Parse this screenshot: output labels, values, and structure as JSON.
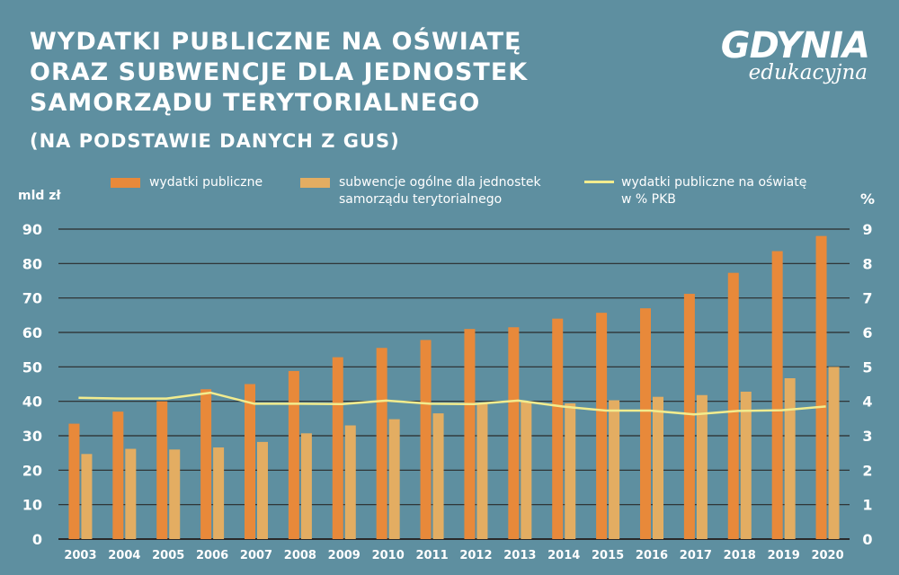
{
  "header": {
    "title_lines": [
      "WYDATKI PUBLICZNE NA OŚWIATĘ",
      "ORAZ SUBWENCJE DLA JEDNOSTEK",
      "SAMORZĄDU TERYTORIALNEGO"
    ],
    "subtitle": "(NA PODSTAWIE DANYCH Z GUS)"
  },
  "logo": {
    "main": "GDYNIA",
    "sub": "edukacyjna"
  },
  "legend": {
    "series1": "wydatki publiczne",
    "series2_line1": "subwencje ogólne dla jednostek",
    "series2_line2": "samorządu terytorialnego",
    "series3_line1": "wydatki publiczne na oświatę",
    "series3_line2": "w % PKB"
  },
  "colors": {
    "background": "#5e8fa0",
    "bar1": "#e8893a",
    "bar2": "#e3ad62",
    "line": "#f2ec8e",
    "grid": "#2a2a2a",
    "text": "#ffffff"
  },
  "chart_data": {
    "type": "bar",
    "categories": [
      "2003",
      "2004",
      "2005",
      "2006",
      "2007",
      "2008",
      "2009",
      "2010",
      "2011",
      "2012",
      "2013",
      "2014",
      "2015",
      "2016",
      "2017",
      "2018",
      "2019",
      "2020"
    ],
    "series": [
      {
        "name": "wydatki publiczne",
        "type": "bar",
        "axis": "left",
        "values": [
          33.5,
          37,
          40,
          43.5,
          45,
          48.8,
          52.8,
          55.5,
          57.8,
          61,
          61.5,
          64,
          65.7,
          67,
          71.2,
          77.3,
          83.6,
          88
        ]
      },
      {
        "name": "subwencje ogólne dla jednostek samorządu terytorialnego",
        "type": "bar",
        "axis": "left",
        "values": [
          24.7,
          26.2,
          26,
          26.6,
          28.2,
          30.7,
          33,
          34.8,
          36.5,
          39.5,
          39.8,
          39.4,
          40.3,
          41.3,
          41.8,
          42.8,
          46.7,
          50
        ]
      },
      {
        "name": "wydatki publiczne na oświatę w % PKB",
        "type": "line",
        "axis": "right",
        "values": [
          4.1,
          4.08,
          4.08,
          4.25,
          3.93,
          3.93,
          3.92,
          4.02,
          3.93,
          3.92,
          4.02,
          3.85,
          3.73,
          3.73,
          3.62,
          3.72,
          3.74,
          3.85
        ]
      }
    ],
    "ylabel": "mld zł",
    "ylim": [
      0,
      90
    ],
    "yticks": [
      0,
      10,
      20,
      30,
      40,
      50,
      60,
      70,
      80,
      90
    ],
    "y2label": "%",
    "y2lim": [
      0,
      9
    ],
    "y2ticks": [
      0,
      1,
      2,
      3,
      4,
      5,
      6,
      7,
      8,
      9
    ],
    "grid": true,
    "legend_position": "top"
  }
}
